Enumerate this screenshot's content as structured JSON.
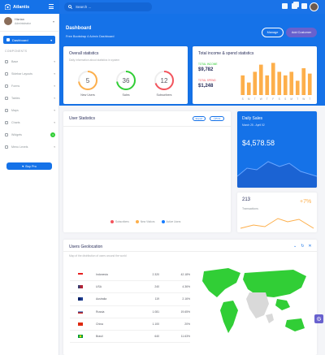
{
  "brand": {
    "name": "Atlantis"
  },
  "search": {
    "placeholder": "Search ..."
  },
  "user": {
    "name": "Hizrian",
    "role": "Administrator"
  },
  "sidebar": {
    "active": "Dashboard",
    "section_label": "COMPONENTS",
    "items": [
      {
        "label": "Base"
      },
      {
        "label": "Sidebar Layouts"
      },
      {
        "label": "Forms"
      },
      {
        "label": "Tables"
      },
      {
        "label": "Maps"
      },
      {
        "label": "Charts"
      },
      {
        "label": "Widgets",
        "badge": "4"
      },
      {
        "label": "Menu Levels"
      }
    ],
    "buy_pro": "Buy Pro"
  },
  "hero": {
    "title": "Dashboard",
    "subtitle": "Free Bootstrap 4 Admin Dashboard",
    "manage_label": "Manage",
    "add_label": "Add Customer"
  },
  "overall": {
    "title": "Overall statistics",
    "subtitle": "Daily information about statistics in system",
    "rings": [
      {
        "value": "5",
        "label": "New Users",
        "color": "#f3545d",
        "fraction": 0.45,
        "track": "#f39c12"
      },
      {
        "value": "36",
        "label": "Sales",
        "color": "#31ce36",
        "fraction": 0.72,
        "track": "#31ce36"
      },
      {
        "value": "12",
        "label": "Subscribers",
        "color": "#f3545d",
        "fraction": 0.7,
        "track": "#f3545d"
      }
    ]
  },
  "income": {
    "title": "Total income & spend statistics",
    "income_label": "TOTAL INCOME",
    "income_value": "$9,782",
    "spend_label": "TOTAL SPEND",
    "spend_value": "$1,248",
    "bar_color": "#fdaf4b"
  },
  "user_stats": {
    "title": "User Statistics",
    "export_label": "Export",
    "print_label": "Print",
    "legend": [
      {
        "label": "Subscribers",
        "color": "#f3545d"
      },
      {
        "label": "New Visitors",
        "color": "#fdaf4b"
      },
      {
        "label": "Active Users",
        "color": "#177dff"
      }
    ]
  },
  "daily_sales": {
    "title": "Daily Sales",
    "range": "March 25 - April 02",
    "value": "$4,578.58"
  },
  "transactions": {
    "count": "213",
    "label": "Transactions",
    "change": "+7%"
  },
  "geo": {
    "title": "Users Geolocation",
    "subtitle": "Map of the distribution of users around the world",
    "rows": [
      {
        "country": "Indonesia",
        "count": "2.320",
        "pct": "42.18%",
        "flag_a": "#e62020",
        "flag_b": "#ffffff"
      },
      {
        "country": "USA",
        "count": "240",
        "pct": "4.36%",
        "flag_a": "#b22234",
        "flag_b": "#3c3b6e"
      },
      {
        "country": "Australia",
        "count": "119",
        "pct": "2.16%",
        "flag_a": "#012169",
        "flag_b": "#e4002b"
      },
      {
        "country": "Russia",
        "count": "1.081",
        "pct": "19.65%",
        "flag_a": "#ffffff",
        "flag_b": "#0039a6"
      },
      {
        "country": "China",
        "count": "1.100",
        "pct": "20%",
        "flag_a": "#de2910",
        "flag_b": "#ffde00"
      },
      {
        "country": "Brasil",
        "count": "640",
        "pct": "11.63%",
        "flag_a": "#009c3b",
        "flag_b": "#ffdf00"
      }
    ]
  },
  "chart_data": [
    {
      "type": "bar",
      "categories": [
        "S",
        "M",
        "T",
        "W",
        "T",
        "F",
        "S",
        "S",
        "M",
        "T",
        "W",
        "T"
      ],
      "values": [
        11,
        7,
        13,
        17,
        11,
        18,
        13,
        11,
        13,
        8,
        15,
        12
      ],
      "ylim": [
        0,
        20
      ]
    }
  ],
  "colors": {
    "primary": "#1572e8",
    "secondary": "#6861ce",
    "success": "#31ce36",
    "warning": "#fdaf4b",
    "danger": "#f3545d"
  }
}
